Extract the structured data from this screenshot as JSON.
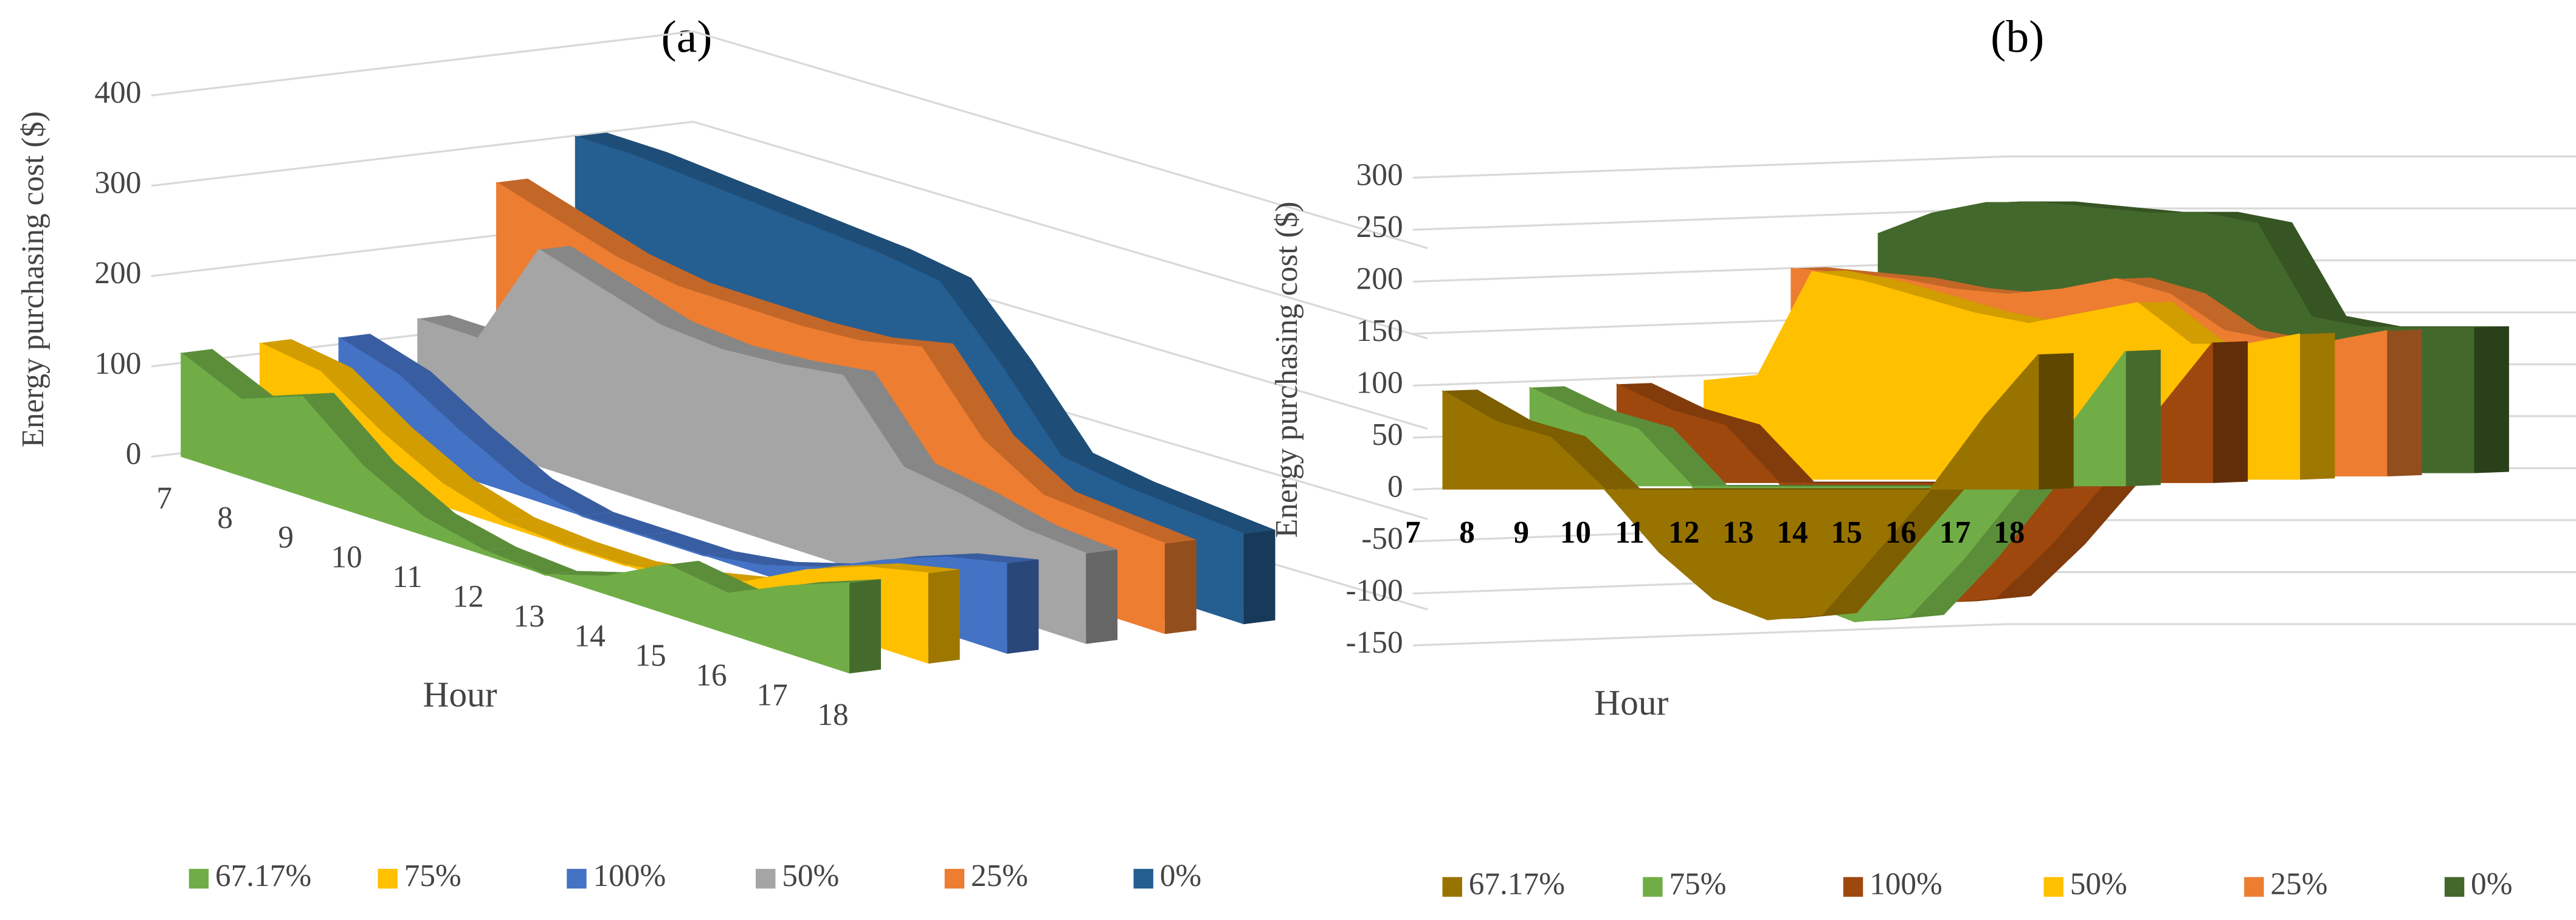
{
  "chart_data": [
    {
      "type": "area3d",
      "title": "(a)",
      "y_label": "Energy purchasing cost ($)",
      "x_label": "Hour",
      "x": [
        7,
        8,
        9,
        10,
        11,
        12,
        13,
        14,
        15,
        16,
        17,
        18
      ],
      "ylim": [
        0,
        400
      ],
      "yticks": [
        0,
        100,
        200,
        300,
        400
      ],
      "grid": true,
      "series": [
        {
          "name": "67.17%",
          "color": "#70ad47",
          "values": [
            115,
            85,
            110,
            55,
            20,
            5,
            0,
            20,
            55,
            45,
            75,
            100
          ]
        },
        {
          "name": "75%",
          "color": "#ffc000",
          "values": [
            115,
            105,
            60,
            25,
            5,
            0,
            0,
            10,
            25,
            60,
            85,
            100
          ]
        },
        {
          "name": "100%",
          "color": "#4472c4",
          "values": [
            110,
            90,
            50,
            15,
            0,
            0,
            0,
            10,
            30,
            60,
            85,
            100
          ]
        },
        {
          "name": "50%",
          "color": "#a5a5a5",
          "values": [
            120,
            120,
            240,
            220,
            200,
            195,
            200,
            210,
            130,
            120,
            105,
            100
          ]
        },
        {
          "name": "25%",
          "color": "#ed7d31",
          "values": [
            260,
            240,
            220,
            210,
            210,
            210,
            215,
            230,
            150,
            110,
            105,
            100
          ]
        },
        {
          "name": "0%",
          "color": "#255e91",
          "values": [
            300,
            300,
            295,
            290,
            285,
            280,
            270,
            200,
            120,
            110,
            105,
            100
          ]
        }
      ]
    },
    {
      "type": "area3d",
      "title": "(b)",
      "y_label": "Energy purchasing cost ($)",
      "x_label": "Hour",
      "x": [
        7,
        8,
        9,
        10,
        11,
        12,
        13,
        14,
        15,
        16,
        17,
        18
      ],
      "ylim": [
        -150,
        300
      ],
      "yticks": [
        -150,
        -100,
        -50,
        0,
        50,
        100,
        150,
        200,
        250,
        300
      ],
      "grid": true,
      "series": [
        {
          "name": "67.17%",
          "color": "#997300",
          "values": [
            95,
            65,
            50,
            0,
            -60,
            -105,
            -125,
            -120,
            -60,
            0,
            70,
            130
          ]
        },
        {
          "name": "75%",
          "color": "#70ad47",
          "values": [
            95,
            70,
            55,
            0,
            -60,
            -110,
            -130,
            -125,
            -70,
            -5,
            60,
            130
          ]
        },
        {
          "name": "100%",
          "color": "#9e480e",
          "values": [
            95,
            70,
            55,
            0,
            -60,
            -100,
            -115,
            -110,
            -60,
            0,
            70,
            135
          ]
        },
        {
          "name": "50%",
          "color": "#ffc000",
          "values": [
            95,
            100,
            200,
            190,
            175,
            160,
            150,
            160,
            170,
            130,
            130,
            140
          ]
        },
        {
          "name": "25%",
          "color": "#ed7d31",
          "values": [
            200,
            195,
            190,
            180,
            175,
            180,
            190,
            175,
            140,
            130,
            130,
            140
          ]
        },
        {
          "name": "0%",
          "color": "#43682b",
          "values": [
            230,
            250,
            260,
            260,
            255,
            250,
            250,
            240,
            150,
            140,
            140,
            140
          ]
        }
      ]
    }
  ]
}
